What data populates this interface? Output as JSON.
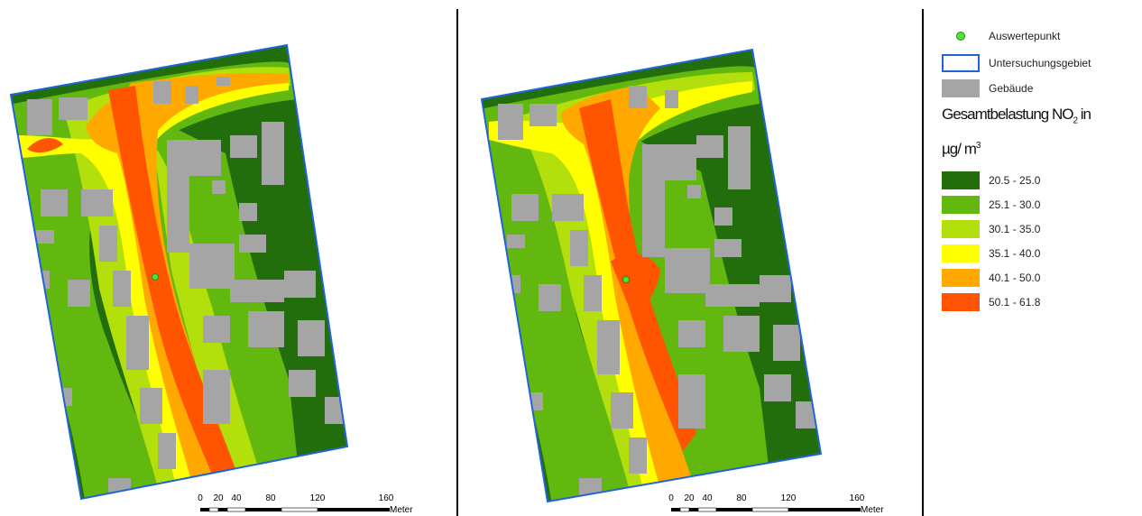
{
  "legend": {
    "point_label": "Auswertepunkt",
    "area_label": "Untersuchungsgebiet",
    "building_label": "Gebäude",
    "title_main": "Gesamtbelastung NO",
    "title_sub": "2",
    "title_after": " in",
    "unit_main": "µg/ m",
    "unit_sup": "3",
    "classes": [
      {
        "label": "20.5 - 25.0",
        "color": "#236e0c"
      },
      {
        "label": "25.1 - 30.0",
        "color": "#62b80f"
      },
      {
        "label": "30.1 - 35.0",
        "color": "#b3df0c"
      },
      {
        "label": "35.1 - 40.0",
        "color": "#ffff00"
      },
      {
        "label": "40.1 - 50.0",
        "color": "#ffa800"
      },
      {
        "label": "50.1 - 61.8",
        "color": "#ff5400"
      }
    ],
    "point_color": "#52e03c",
    "area_color": "#1f64d8",
    "building_color": "#a5a5a5"
  },
  "scalebar": {
    "ticks": [
      "0",
      "20",
      "40",
      "80",
      "120",
      "160"
    ],
    "unit": "Meter"
  }
}
